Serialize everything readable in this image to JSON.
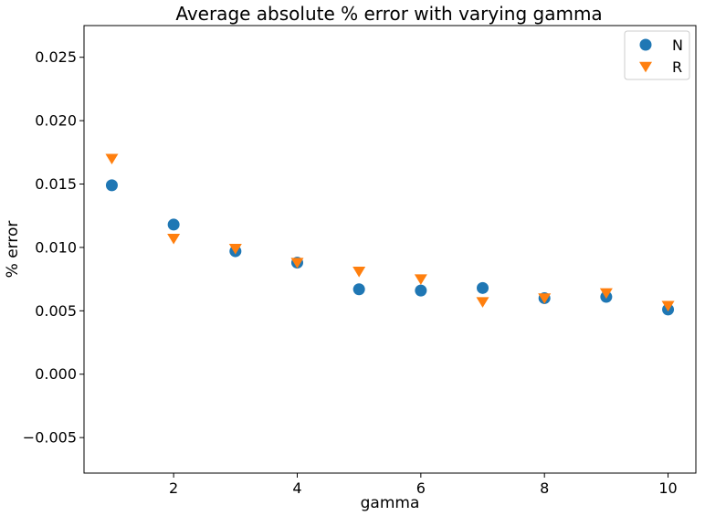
{
  "chart_data": {
    "type": "scatter",
    "title": "Average absolute % error with varying gamma",
    "xlabel": "gamma",
    "ylabel": "% error",
    "xlim": [
      0.55,
      10.45
    ],
    "ylim": [
      -0.0078,
      0.0275
    ],
    "xticks": [
      2,
      4,
      6,
      8,
      10
    ],
    "xtick_labels": [
      "2",
      "4",
      "6",
      "8",
      "10"
    ],
    "yticks": [
      -0.005,
      0.0,
      0.005,
      0.01,
      0.015,
      0.02,
      0.025
    ],
    "ytick_labels": [
      "−0.005",
      "0.000",
      "0.005",
      "0.010",
      "0.015",
      "0.020",
      "0.025"
    ],
    "grid": false,
    "legend_position": "top-right",
    "series": [
      {
        "name": "N",
        "marker": "circle",
        "color": "#1f77b4",
        "x": [
          1,
          2,
          3,
          4,
          5,
          6,
          7,
          8,
          9,
          10
        ],
        "y": [
          0.0149,
          0.0118,
          0.0097,
          0.0088,
          0.0067,
          0.0066,
          0.0068,
          0.006,
          0.0061,
          0.0051
        ]
      },
      {
        "name": "R",
        "marker": "triangle-down",
        "color": "#ff7f0e",
        "x": [
          1,
          2,
          3,
          4,
          5,
          6,
          7,
          8,
          9,
          10
        ],
        "y": [
          0.017,
          0.0107,
          0.0099,
          0.0088,
          0.0081,
          0.0075,
          0.0057,
          0.006,
          0.0064,
          0.0054
        ]
      }
    ]
  }
}
